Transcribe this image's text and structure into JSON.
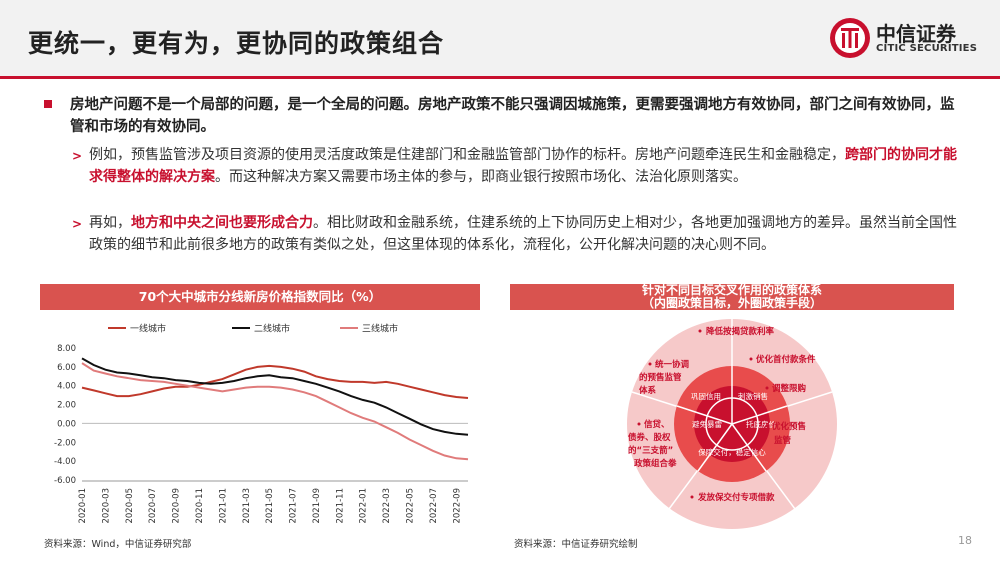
{
  "header": {
    "title": "更统一，更有为，更协同的政策组合",
    "logo_cn": "中信证券",
    "logo_en": "CITIC SECURITIES"
  },
  "main_bullet": "房地产问题不是一个局部的问题，是一个全局的问题。房地产政策不能只强调因城施策，更需要强调地方有效协同，部门之间有效协同，监管和市场的有效协同。",
  "sub1": {
    "a": "例如，预售监管涉及项目资源的使用灵活度政策是住建部门和金融监管部门协作的标杆。房地产问题牵连民生和金融稳定，",
    "hl": "跨部门的协同才能求得整体的解决方案",
    "b": "。而这种解决方案又需要市场主体的参与，即商业银行按照市场化、法治化原则落实。"
  },
  "sub2": {
    "a": "再如，",
    "hl": "地方和中央之间也要形成合力",
    "b": "。相比财政和金融系统，住建系统的上下协同历史上相对少，各地更加强调地方的差异。虽然当前全国性政策的细节和此前很多地方的政策有类似之处，但这里体现的体系化，流程化，公开化解决问题的决心则不同。"
  },
  "left_chart_title": "70个大中城市分线新房价格指数同比（%）",
  "right_chart_title_1": "针对不同目标交叉作用的政策体系",
  "right_chart_title_2": "（内圈政策目标，外圈政策手段）",
  "chart_data": {
    "type": "line",
    "title": "70个大中城市分线新房价格指数同比（%）",
    "x": [
      "2020-01",
      "2020-02",
      "2020-03",
      "2020-04",
      "2020-05",
      "2020-06",
      "2020-07",
      "2020-08",
      "2020-09",
      "2020-10",
      "2020-11",
      "2020-12",
      "2021-01",
      "2021-02",
      "2021-03",
      "2021-04",
      "2021-05",
      "2021-06",
      "2021-07",
      "2021-08",
      "2021-09",
      "2021-10",
      "2021-11",
      "2021-12",
      "2022-01",
      "2022-02",
      "2022-03",
      "2022-04",
      "2022-05",
      "2022-06",
      "2022-07",
      "2022-08",
      "2022-09",
      "2022-10"
    ],
    "x_ticks": [
      "2020-01",
      "2020-03",
      "2020-05",
      "2020-07",
      "2020-09",
      "2020-11",
      "2021-01",
      "2021-03",
      "2021-05",
      "2021-07",
      "2021-09",
      "2021-11",
      "2022-01",
      "2022-03",
      "2022-05",
      "2022-07",
      "2022-09"
    ],
    "ylim": [
      -6,
      8
    ],
    "y_ticks": [
      "8.00",
      "6.00",
      "4.00",
      "2.00",
      "0.00",
      "-2.00",
      "-4.00",
      "-6.00"
    ],
    "legend_position": "top",
    "series": [
      {
        "name": "一线城市",
        "color": "#c0392b",
        "values": [
          3.8,
          3.5,
          3.2,
          2.9,
          2.9,
          3.1,
          3.4,
          3.7,
          3.9,
          3.9,
          4.1,
          4.4,
          4.7,
          5.2,
          5.7,
          6.0,
          6.1,
          6.0,
          5.8,
          5.5,
          5.0,
          4.7,
          4.5,
          4.4,
          4.4,
          4.3,
          4.4,
          4.2,
          3.9,
          3.6,
          3.3,
          3.0,
          2.8,
          2.7
        ]
      },
      {
        "name": "二线城市",
        "color": "#111111",
        "values": [
          6.9,
          6.2,
          5.7,
          5.4,
          5.3,
          5.1,
          4.9,
          4.8,
          4.6,
          4.5,
          4.3,
          4.2,
          4.3,
          4.5,
          4.8,
          5.0,
          5.1,
          4.9,
          4.8,
          4.5,
          4.2,
          3.8,
          3.4,
          2.9,
          2.5,
          2.2,
          1.7,
          1.1,
          0.5,
          -0.1,
          -0.6,
          -0.9,
          -1.1,
          -1.2
        ]
      },
      {
        "name": "三线城市",
        "color": "#e07b7b",
        "values": [
          6.4,
          5.6,
          5.3,
          5.0,
          4.8,
          4.6,
          4.5,
          4.4,
          4.2,
          4.0,
          3.8,
          3.6,
          3.4,
          3.6,
          3.8,
          3.9,
          3.9,
          3.8,
          3.6,
          3.3,
          2.9,
          2.3,
          1.7,
          1.1,
          0.6,
          0.2,
          -0.4,
          -1.0,
          -1.7,
          -2.3,
          -2.9,
          -3.4,
          -3.7,
          -3.8
        ]
      }
    ]
  },
  "diagram": {
    "inner": [
      "巩固信用",
      "刺激销售",
      "避免暴雷",
      "托底房价",
      "保障交付，稳定信心"
    ],
    "outer_top": "降低按揭贷款利率",
    "outer_1": "优化首付款条件",
    "outer_2": "调整限购",
    "outer_3": "优化预售",
    "outer_3b": "监管",
    "outer_bottom": "发放保交付专项借款",
    "outer_left_top_1": "统一协调",
    "outer_left_top_2": "的预售监管",
    "outer_left_top_3": "体系",
    "outer_left_bot_1": "信贷、",
    "outer_left_bot_2": "债券、股权",
    "outer_left_bot_3": "的“三支箭”",
    "outer_left_bot_4": "政策组合拳"
  },
  "source_left": "资料来源：Wind，中信证券研究部",
  "source_right": "资料来源：中信证券研究绘制",
  "page_number": "18"
}
